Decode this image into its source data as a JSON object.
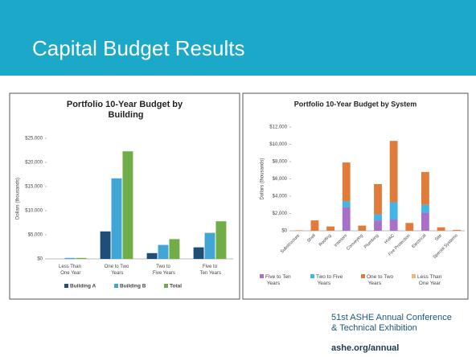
{
  "slide": {
    "title": "Capital Budget Results",
    "footer": [
      "51st ASHE Annual Conference",
      "& Technical Exhibition",
      "ashe.org/annual"
    ]
  },
  "chart_data": [
    {
      "type": "bar",
      "title": "Portfolio 10-Year Budget by Building",
      "y_label": "Dollars (thousands)",
      "categories": [
        "Less Than One Year",
        "One to Two Years",
        "Two to Five Years",
        "Five to Ten Years"
      ],
      "series": [
        {
          "name": "Building A",
          "color": "#1f4e79",
          "values": [
            0,
            5700,
            1200,
            2400
          ]
        },
        {
          "name": "Building B",
          "color": "#41a6d6",
          "values": [
            200,
            16700,
            2900,
            5400
          ]
        },
        {
          "name": "Total",
          "color": "#70ad47",
          "values": [
            200,
            22300,
            4100,
            7800
          ]
        }
      ],
      "ylim": [
        0,
        25000
      ],
      "yticks": [
        {
          "value": 0,
          "label": "$0"
        },
        {
          "value": 5000,
          "label": "$5,000"
        },
        {
          "value": 10000,
          "label": "$10,000"
        },
        {
          "value": 15000,
          "label": "$15,000"
        },
        {
          "value": 20000,
          "label": "$20,000"
        },
        {
          "value": 25000,
          "label": "$25,000"
        }
      ],
      "legend": "bottom"
    },
    {
      "type": "bar",
      "stacked": true,
      "title": "Portfolio 10-Year Budget by System",
      "y_label": "Dollars (thousands)",
      "categories": [
        "Substructure",
        "Shell",
        "Roofing",
        "Interiors",
        "Conveying",
        "Plumbing",
        "HVAC",
        "Fire Protection",
        "Electrical",
        "Site",
        "Special Systems"
      ],
      "series": [
        {
          "name": "Five to Ten Years",
          "color": "#a970c8",
          "values": [
            0,
            0,
            0,
            2700,
            0,
            1200,
            1300,
            0,
            2100,
            0,
            0
          ]
        },
        {
          "name": "Two to Five Years",
          "color": "#41b6e6",
          "values": [
            0,
            0,
            0,
            700,
            0,
            700,
            2000,
            0,
            900,
            0,
            0
          ]
        },
        {
          "name": "One to Two Years",
          "color": "#e07b39",
          "values": [
            50,
            1200,
            500,
            4500,
            600,
            3500,
            7100,
            900,
            3800,
            400,
            100
          ]
        },
        {
          "name": "Less Than One Year",
          "color": "#f4b183",
          "values": [
            0,
            0,
            0,
            0,
            0,
            0,
            0,
            0,
            0,
            0,
            0
          ]
        }
      ],
      "ylim": [
        0,
        12000
      ],
      "yticks": [
        {
          "value": 0,
          "label": "$0"
        },
        {
          "value": 2000,
          "label": "$2,000"
        },
        {
          "value": 4000,
          "label": "$4,000"
        },
        {
          "value": 6000,
          "label": "$6,000"
        },
        {
          "value": 8000,
          "label": "$8,000"
        },
        {
          "value": 10000,
          "label": "$10,000"
        },
        {
          "value": 12000,
          "label": "$12,000"
        }
      ],
      "legend": "bottom"
    }
  ]
}
